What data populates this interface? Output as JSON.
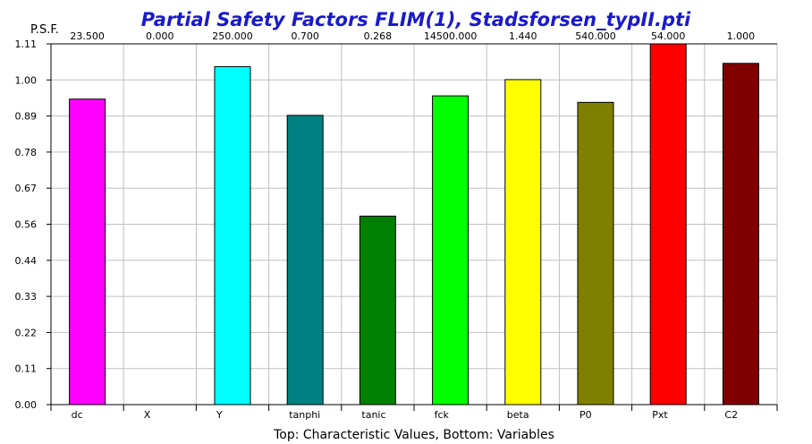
{
  "chart_data": {
    "type": "bar",
    "title": "Partial Safety Factors FLIM(1), Stadsforsen_typII.pti",
    "ylabel": "P.S.F.",
    "xlabel": "Top: Characteristic Values, Bottom: Variables",
    "ylim": [
      0,
      1.11
    ],
    "yticks": [
      "0.00",
      "0.11",
      "0.22",
      "0.33",
      "0.44",
      "0.56",
      "0.67",
      "0.78",
      "0.89",
      "1.00",
      "1.11"
    ],
    "grid": true,
    "categories": [
      "dc",
      "X",
      "Y",
      "tanphi",
      "tanic",
      "fck",
      "beta",
      "P0",
      "Pxt",
      "C2"
    ],
    "characteristic_values": [
      "23.500",
      "0.000",
      "250.000",
      "0.700",
      "0.268",
      "14500.000",
      "1.440",
      "540.000",
      "54.000",
      "1.000"
    ],
    "values": [
      0.94,
      0.0,
      1.04,
      0.89,
      0.58,
      0.95,
      1.0,
      0.93,
      1.11,
      1.05
    ],
    "colors": [
      "#ff00ff",
      "#ffffff",
      "#00ffff",
      "#008080",
      "#008000",
      "#00ff00",
      "#ffff00",
      "#808000",
      "#ff0000",
      "#800000"
    ]
  }
}
